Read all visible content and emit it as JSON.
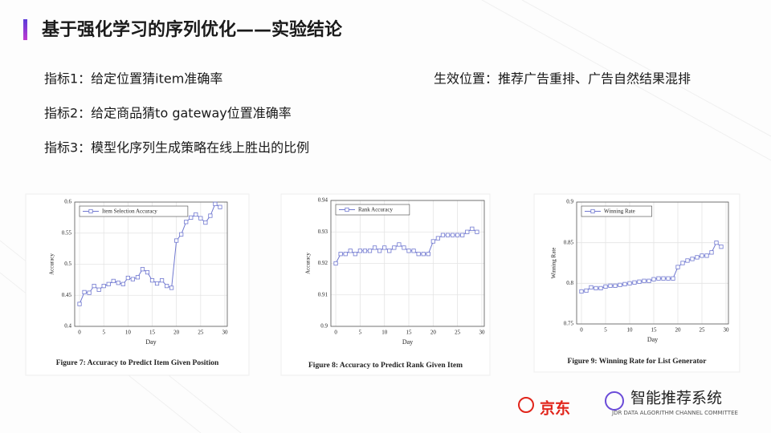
{
  "header": {
    "title": "基于强化学习的序列优化——实验结论"
  },
  "metrics": [
    "指标1：给定位置猜item准确率",
    "指标2：给定商品猜to gateway位置准确率",
    "指标3：模型化序列生成策略在线上胜出的比例"
  ],
  "effect_position": "生效位置：推荐广告重排、广告自然结果混排",
  "footer": {
    "logo": "京东",
    "brand": "智能推荐系统",
    "subtitle": "JDR DATA ALGORITHM CHANNEL COMMITTEE"
  },
  "chart_data": [
    {
      "type": "line",
      "caption": "Figure 7: Accuracy to Predict Item Given Position",
      "xlabel": "Day",
      "ylabel": "Accuracy",
      "x": [
        0,
        1,
        2,
        3,
        4,
        5,
        6,
        7,
        8,
        9,
        10,
        11,
        12,
        13,
        14,
        15,
        16,
        17,
        18,
        19,
        20,
        21,
        22,
        23,
        24,
        25,
        26,
        27,
        28,
        29
      ],
      "series": [
        {
          "name": "Item Selection Accuracy",
          "color": "#7078d0",
          "values": [
            0.436,
            0.455,
            0.454,
            0.465,
            0.459,
            0.465,
            0.468,
            0.473,
            0.47,
            0.468,
            0.478,
            0.476,
            0.479,
            0.492,
            0.487,
            0.474,
            0.469,
            0.474,
            0.465,
            0.462,
            0.538,
            0.548,
            0.568,
            0.575,
            0.58,
            0.574,
            0.567,
            0.578,
            0.597,
            0.592
          ]
        }
      ],
      "xlim": [
        -1,
        30.5
      ],
      "xticks": [
        0,
        5,
        10,
        15,
        20,
        25,
        30
      ],
      "ylim": [
        0.4,
        0.6
      ],
      "yticks": [
        0.4,
        0.45,
        0.5,
        0.55,
        0.6
      ],
      "grid": true
    },
    {
      "type": "line",
      "caption": "Figure 8: Accuracy to Predict Rank Given Item",
      "xlabel": "Day",
      "ylabel": "Accuracy",
      "x": [
        0,
        1,
        2,
        3,
        4,
        5,
        6,
        7,
        8,
        9,
        10,
        11,
        12,
        13,
        14,
        15,
        16,
        17,
        18,
        19,
        20,
        21,
        22,
        23,
        24,
        25,
        26,
        27,
        28,
        29
      ],
      "series": [
        {
          "name": "Rank Accuracy",
          "color": "#7078d0",
          "values": [
            0.92,
            0.923,
            0.923,
            0.924,
            0.923,
            0.924,
            0.924,
            0.924,
            0.925,
            0.924,
            0.925,
            0.924,
            0.925,
            0.926,
            0.925,
            0.924,
            0.924,
            0.923,
            0.923,
            0.923,
            0.927,
            0.928,
            0.929,
            0.929,
            0.929,
            0.929,
            0.929,
            0.93,
            0.931,
            0.93
          ]
        }
      ],
      "xlim": [
        -1,
        30.5
      ],
      "xticks": [
        0,
        5,
        10,
        15,
        20,
        25,
        30
      ],
      "ylim": [
        0.9,
        0.94
      ],
      "yticks": [
        0.9,
        0.91,
        0.92,
        0.93,
        0.94
      ],
      "grid": true
    },
    {
      "type": "line",
      "caption": "Figure 9: Winning Rate for List Generator",
      "xlabel": "Day",
      "ylabel": "Winning Rate",
      "x": [
        0,
        1,
        2,
        3,
        4,
        5,
        6,
        7,
        8,
        9,
        10,
        11,
        12,
        13,
        14,
        15,
        16,
        17,
        18,
        19,
        20,
        21,
        22,
        23,
        24,
        25,
        26,
        27,
        28,
        29
      ],
      "series": [
        {
          "name": "Winning Rate",
          "color": "#7078d0",
          "values": [
            0.79,
            0.791,
            0.795,
            0.794,
            0.794,
            0.796,
            0.797,
            0.797,
            0.798,
            0.799,
            0.8,
            0.801,
            0.802,
            0.803,
            0.803,
            0.805,
            0.806,
            0.806,
            0.806,
            0.806,
            0.82,
            0.825,
            0.828,
            0.83,
            0.832,
            0.834,
            0.834,
            0.838,
            0.85,
            0.845
          ]
        }
      ],
      "xlim": [
        -1,
        30.5
      ],
      "xticks": [
        0,
        5,
        10,
        15,
        20,
        25,
        30
      ],
      "ylim": [
        0.75,
        0.9
      ],
      "yticks": [
        0.75,
        0.8,
        0.85,
        0.9
      ],
      "grid": true
    }
  ]
}
